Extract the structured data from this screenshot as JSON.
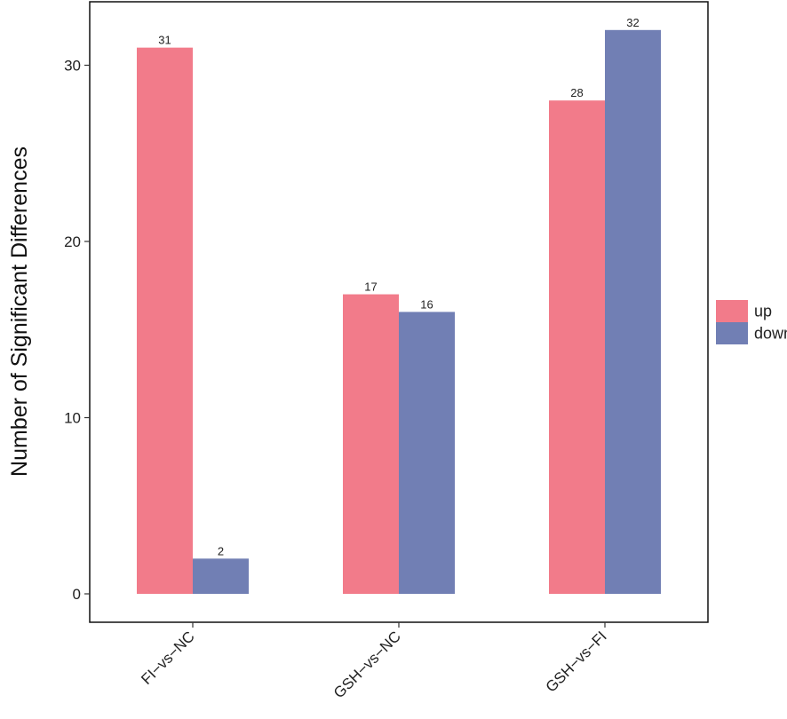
{
  "chart_data": {
    "type": "bar",
    "title": "",
    "xlabel": "",
    "ylabel": "Number of Significant Differences",
    "categories": [
      "FI−vs−NC",
      "GSH−vs−NC",
      "GSH−vs−FI"
    ],
    "series": [
      {
        "name": "up",
        "values": [
          31,
          17,
          28
        ],
        "color": "#f27b8a"
      },
      {
        "name": "down",
        "values": [
          2,
          16,
          32
        ],
        "color": "#717fb4"
      }
    ],
    "ylim": [
      0,
      33.2
    ],
    "yticks": [
      0,
      10,
      20,
      30
    ],
    "grid": false,
    "legend_position": "right"
  }
}
